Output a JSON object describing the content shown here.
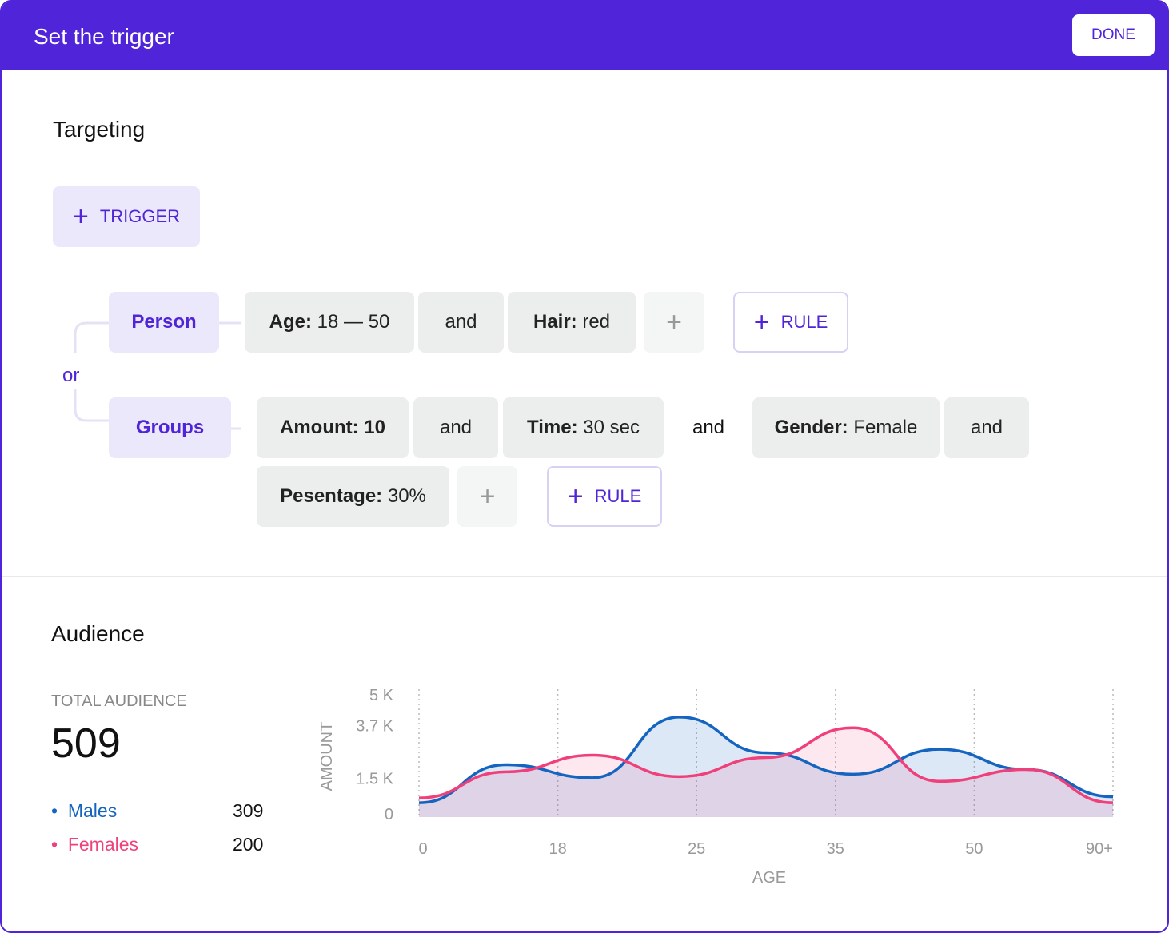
{
  "header": {
    "title": "Set the trigger",
    "done": "DONE"
  },
  "targeting": {
    "title": "Targeting",
    "add_trigger": "TRIGGER",
    "connector": "or",
    "triggers": [
      {
        "name": "Person",
        "items": [
          {
            "key": "Age:",
            "value": "18 — 50"
          },
          "and",
          {
            "key": "Hair:",
            "value": "red"
          }
        ],
        "add_rule": "RULE"
      },
      {
        "name": "Groups",
        "items": [
          {
            "key": "Amount:",
            "value": "10"
          },
          "and",
          {
            "key": "Time:",
            "value": "30 sec"
          },
          "and",
          {
            "key": "Gender:",
            "value": "Female"
          },
          "and",
          {
            "key": "Pesentage:",
            "value": "30%"
          }
        ],
        "add_rule": "RULE"
      }
    ]
  },
  "audience": {
    "title": "Audience",
    "total_label": "TOTAL AUDIENCE",
    "total": 509,
    "counts": [
      309,
      200
    ]
  },
  "chart_data": {
    "type": "area",
    "x": [
      0,
      1,
      2,
      3,
      4,
      5,
      6,
      7,
      8
    ],
    "xlim": [
      0,
      8
    ],
    "xticks": [
      0,
      {
        "value": 1.6,
        "label": "18"
      },
      {
        "value": 3.2,
        "label": "25"
      },
      {
        "value": 4.8,
        "label": "35"
      },
      {
        "value": 6.4,
        "label": "50"
      },
      {
        "value": 8,
        "label": "90+"
      }
    ],
    "ylim": [
      0,
      5000
    ],
    "yticks": [
      0,
      {
        "value": 1500,
        "label": "1.5 K"
      },
      {
        "value": 3700,
        "label": "3.7 K"
      },
      {
        "value": 5000,
        "label": "5 K"
      }
    ],
    "xlabel": "AGE",
    "ylabel": "AMOUNT",
    "grid": "x",
    "series": [
      {
        "name": "Males",
        "color": "#1565c0",
        "values": [
          600,
          2200,
          1650,
          4200,
          2700,
          1800,
          2850,
          2000,
          850
        ]
      },
      {
        "name": "Females",
        "color": "#f0407a",
        "values": [
          800,
          1900,
          2600,
          1700,
          2500,
          3750,
          1500,
          2000,
          600
        ]
      }
    ]
  }
}
